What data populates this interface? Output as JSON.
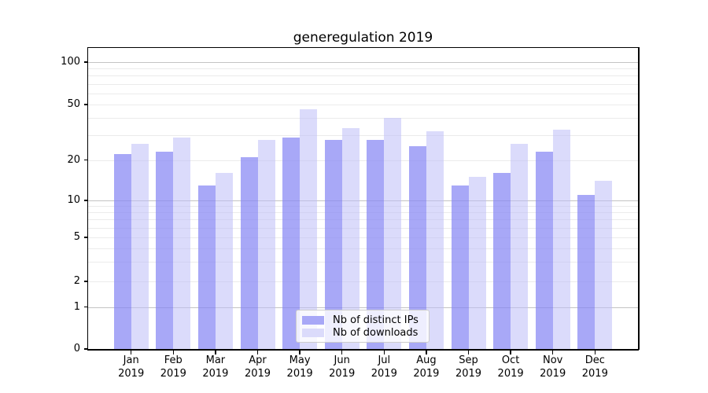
{
  "title": "generegulation 2019",
  "axes": {
    "y_tick_labels": [
      "0",
      "1",
      "2",
      "5",
      "10",
      "20",
      "50",
      "100"
    ],
    "x_months": [
      "Jan",
      "Feb",
      "Mar",
      "Apr",
      "May",
      "Jun",
      "Jul",
      "Aug",
      "Sep",
      "Oct",
      "Nov",
      "Dec"
    ],
    "x_year": "2019"
  },
  "legend": {
    "items": [
      {
        "label": "Nb of distinct IPs",
        "color": "#a8a8f7"
      },
      {
        "label": "Nb of downloads",
        "color": "#dbdbfb"
      }
    ]
  },
  "chart_data": {
    "type": "bar",
    "title": "generegulation 2019",
    "categories": [
      "Jan 2019",
      "Feb 2019",
      "Mar 2019",
      "Apr 2019",
      "May 2019",
      "Jun 2019",
      "Jul 2019",
      "Aug 2019",
      "Sep 2019",
      "Oct 2019",
      "Nov 2019",
      "Dec 2019"
    ],
    "series": [
      {
        "name": "Nb of distinct IPs",
        "color": "#a8a8f7",
        "values": [
          22,
          23,
          13,
          21,
          29,
          28,
          28,
          25,
          13,
          16,
          23,
          11
        ]
      },
      {
        "name": "Nb of downloads",
        "color": "#dbdbfb",
        "values": [
          26,
          29,
          16,
          28,
          46,
          34,
          40,
          32,
          15,
          26,
          33,
          14
        ]
      }
    ],
    "xlabel": "",
    "ylabel": "",
    "yscale": "symlog",
    "yticks": [
      0,
      1,
      2,
      5,
      10,
      20,
      50,
      100
    ],
    "ylim": [
      0,
      127
    ],
    "grid": true,
    "legend_position": "lower center"
  }
}
